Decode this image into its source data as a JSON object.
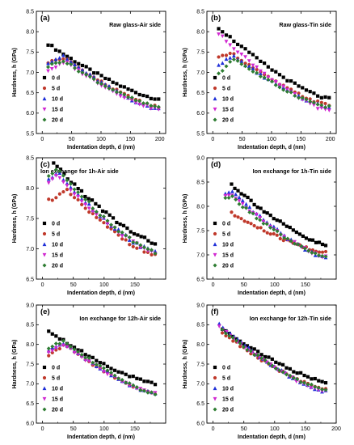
{
  "figure": {
    "series_names": [
      "0 d",
      "5 d",
      "10 d",
      "15 d",
      "20 d"
    ],
    "series_colors": [
      "#000000",
      "#c0392b",
      "#1f2fd8",
      "#d026d0",
      "#2e7d32"
    ],
    "series_markers": [
      "square",
      "circle",
      "triangle-up",
      "triangle-down",
      "diamond"
    ]
  },
  "chart_data": [
    {
      "type": "scatter",
      "label": "(a)",
      "title": "Raw glass-Air side",
      "xlabel": "Indentation depth, d (nm)",
      "ylabel": "Hardness, h (GPa)",
      "xlim": [
        -10,
        210
      ],
      "ylim": [
        5.5,
        8.5
      ],
      "xticks": [
        0,
        50,
        100,
        150,
        200
      ],
      "yticks": [
        5.5,
        6.0,
        6.5,
        7.0,
        7.5,
        8.0,
        8.5
      ],
      "ytick_labels": [
        "5.5",
        "6.0",
        "6.5",
        "7.0",
        "7.5",
        "8.0",
        "8.5"
      ],
      "series": [
        {
          "name": "0 d",
          "start": 10,
          "peak": 7.7,
          "end": 6.35,
          "xmax": 198,
          "peakx": 10,
          "dip": 0
        },
        {
          "name": "5 d",
          "start": 10,
          "peak": 7.35,
          "end": 6.15,
          "xmax": 198,
          "peakx": 38,
          "dip": 0.1
        },
        {
          "name": "10 d",
          "start": 10,
          "peak": 7.4,
          "end": 6.1,
          "xmax": 198,
          "peakx": 35,
          "dip": 0.15
        },
        {
          "name": "15 d",
          "start": 10,
          "peak": 7.25,
          "end": 6.1,
          "xmax": 198,
          "peakx": 40,
          "dip": 0.2
        },
        {
          "name": "20 d",
          "start": 10,
          "peak": 7.3,
          "end": 6.15,
          "xmax": 198,
          "peakx": 35,
          "dip": 0.15
        }
      ]
    },
    {
      "type": "scatter",
      "label": "(b)",
      "title": "Raw glass-Tin side",
      "xlabel": "Indentation depth, d (nm)",
      "ylabel": "Hardness, h (GPa)",
      "xlim": [
        -10,
        210
      ],
      "ylim": [
        5.5,
        8.5
      ],
      "xticks": [
        0,
        50,
        100,
        150,
        200
      ],
      "yticks": [
        5.5,
        6.0,
        6.5,
        7.0,
        7.5,
        8.0,
        8.5
      ],
      "ytick_labels": [
        "5.5",
        "6.0",
        "6.5",
        "7.0",
        "7.5",
        "8.0",
        "8.5"
      ],
      "series": [
        {
          "name": "0 d",
          "start": 10,
          "peak": 8.1,
          "end": 6.35,
          "xmax": 198,
          "peakx": 10,
          "dip": 0
        },
        {
          "name": "5 d",
          "start": 10,
          "peak": 7.5,
          "end": 6.2,
          "xmax": 198,
          "peakx": 30,
          "dip": 0.15
        },
        {
          "name": "10 d",
          "start": 10,
          "peak": 7.4,
          "end": 6.15,
          "xmax": 198,
          "peakx": 35,
          "dip": 0.2
        },
        {
          "name": "15 d",
          "start": 10,
          "peak": 7.95,
          "end": 6.05,
          "xmax": 198,
          "peakx": 10,
          "dip": 0.5
        },
        {
          "name": "20 d",
          "start": 10,
          "peak": 7.35,
          "end": 6.15,
          "xmax": 198,
          "peakx": 35,
          "dip": 0.4
        }
      ]
    },
    {
      "type": "scatter",
      "label": "(c)",
      "title": "Ion exchange for 1h-Air side",
      "xlabel": "Indentation depth, d (nm)",
      "ylabel": "Hardness, h (GPa)",
      "xlim": [
        -10,
        200
      ],
      "ylim": [
        6.5,
        8.5
      ],
      "xticks": [
        0,
        50,
        100,
        150
      ],
      "yticks": [
        6.5,
        7.0,
        7.5,
        8.0,
        8.5
      ],
      "ytick_labels": [
        "6.5",
        "7.0",
        "7.5",
        "8.0",
        "8.5"
      ],
      "series": [
        {
          "name": "0 d",
          "start": 18,
          "peak": 8.4,
          "end": 7.1,
          "xmax": 183,
          "peakx": 18,
          "dip": 0
        },
        {
          "name": "5 d",
          "start": 10,
          "peak": 7.95,
          "end": 6.9,
          "xmax": 183,
          "peakx": 40,
          "dip": 0.15
        },
        {
          "name": "10 d",
          "start": 10,
          "peak": 8.25,
          "end": 6.95,
          "xmax": 183,
          "peakx": 25,
          "dip": 0.1
        },
        {
          "name": "15 d",
          "start": 10,
          "peak": 8.2,
          "end": 6.95,
          "xmax": 183,
          "peakx": 25,
          "dip": 0.1
        },
        {
          "name": "20 d",
          "start": 10,
          "peak": 8.3,
          "end": 6.95,
          "xmax": 183,
          "peakx": 25,
          "dip": 0.1
        }
      ]
    },
    {
      "type": "scatter",
      "label": "(d)",
      "title": "Ion exchange for 1h-Tin side",
      "xlabel": "Indentation depth, d (nm)",
      "ylabel": "Hardness, h (GPa)",
      "xlim": [
        -10,
        200
      ],
      "ylim": [
        6.5,
        9.0
      ],
      "xticks": [
        0,
        50,
        100,
        150
      ],
      "yticks": [
        6.5,
        7.0,
        7.5,
        8.0,
        8.5,
        9.0
      ],
      "ytick_labels": [
        "6.5",
        "7.0",
        "7.5",
        "8.0",
        "8.5",
        "9.0"
      ],
      "series": [
        {
          "name": "0 d",
          "start": 30,
          "peak": 8.45,
          "end": 7.2,
          "xmax": 183,
          "peakx": 30,
          "dip": 0
        },
        {
          "name": "5 d",
          "start": 30,
          "peak": 7.85,
          "end": 7.05,
          "xmax": 183,
          "peakx": 30,
          "dip": 0
        },
        {
          "name": "10 d",
          "start": 20,
          "peak": 8.3,
          "end": 6.95,
          "xmax": 183,
          "peakx": 30,
          "dip": 0.05
        },
        {
          "name": "15 d",
          "start": 20,
          "peak": 8.25,
          "end": 6.95,
          "xmax": 183,
          "peakx": 30,
          "dip": 0.05
        },
        {
          "name": "20 d",
          "start": 20,
          "peak": 8.2,
          "end": 6.95,
          "xmax": 183,
          "peakx": 30,
          "dip": 0.05
        }
      ]
    },
    {
      "type": "scatter",
      "label": "(e)",
      "title": "Ion exchange for 12h-Air side",
      "xlabel": "Indentation depth, d (nm)",
      "ylabel": "Hardness, h (GPa)",
      "xlim": [
        -10,
        200
      ],
      "ylim": [
        6.0,
        9.0
      ],
      "xticks": [
        0,
        50,
        100,
        150
      ],
      "yticks": [
        6.0,
        6.5,
        7.0,
        7.5,
        8.0,
        8.5,
        9.0
      ],
      "ytick_labels": [
        "6.0",
        "6.5",
        "7.0",
        "7.5",
        "8.0",
        "8.5",
        "9.0"
      ],
      "series": [
        {
          "name": "0 d",
          "start": 10,
          "peak": 8.35,
          "end": 7.0,
          "xmax": 183,
          "peakx": 10,
          "dip": 0
        },
        {
          "name": "5 d",
          "start": 10,
          "peak": 8.0,
          "end": 6.75,
          "xmax": 183,
          "peakx": 35,
          "dip": 0.3
        },
        {
          "name": "10 d",
          "start": 10,
          "peak": 8.05,
          "end": 6.75,
          "xmax": 183,
          "peakx": 35,
          "dip": 0.2
        },
        {
          "name": "15 d",
          "start": 10,
          "peak": 8.0,
          "end": 6.75,
          "xmax": 183,
          "peakx": 35,
          "dip": 0.2
        },
        {
          "name": "20 d",
          "start": 10,
          "peak": 8.1,
          "end": 6.75,
          "xmax": 183,
          "peakx": 35,
          "dip": 0.2
        }
      ]
    },
    {
      "type": "scatter",
      "label": "(f)",
      "title": "Ion exchange for 12h-Tin side",
      "xlabel": "Indentation depth, d (nm)",
      "ylabel": "Hardness, h (GPa)",
      "xlim": [
        -10,
        200
      ],
      "ylim": [
        6.0,
        9.0
      ],
      "xticks": [
        0,
        50,
        100,
        150,
        200
      ],
      "yticks": [
        6.0,
        6.5,
        7.0,
        7.5,
        8.0,
        8.5,
        9.0
      ],
      "ytick_labels": [
        "6.0",
        "6.5",
        "7.0",
        "7.5",
        "8.0",
        "8.5",
        "9.0"
      ],
      "series": [
        {
          "name": "0 d",
          "start": 15,
          "peak": 8.4,
          "end": 7.05,
          "xmax": 183,
          "peakx": 15,
          "dip": 0
        },
        {
          "name": "5 d",
          "start": 15,
          "peak": 8.3,
          "end": 6.85,
          "xmax": 183,
          "peakx": 15,
          "dip": 0
        },
        {
          "name": "10 d",
          "start": 10,
          "peak": 8.5,
          "end": 6.8,
          "xmax": 183,
          "peakx": 10,
          "dip": 0
        },
        {
          "name": "15 d",
          "start": 10,
          "peak": 8.45,
          "end": 6.8,
          "xmax": 183,
          "peakx": 10,
          "dip": 0
        },
        {
          "name": "20 d",
          "start": 15,
          "peak": 8.35,
          "end": 6.85,
          "xmax": 183,
          "peakx": 15,
          "dip": 0
        }
      ]
    }
  ]
}
